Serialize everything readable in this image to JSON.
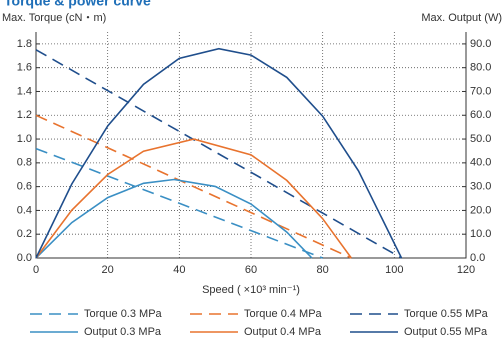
{
  "chart_data": {
    "type": "line",
    "title": "Torque & power curve",
    "y_label": "Max. Torque (cN・m)",
    "y2_label": "Max. Output  (W)",
    "x_label": "Speed ( ×10³ min⁻¹)",
    "xlim": [
      0,
      120
    ],
    "xticks": [
      0,
      20,
      40,
      60,
      80,
      100,
      120
    ],
    "ylim": [
      0,
      1.9
    ],
    "yticks": [
      {
        "value": 0,
        "label": "0.0"
      },
      0.2,
      0.4,
      0.6,
      0.8,
      {
        "value": 1,
        "label": "1.0"
      },
      1.2,
      1.4,
      1.6,
      1.8
    ],
    "y2lim": [
      0,
      95
    ],
    "y2ticks": [
      {
        "value": 0,
        "label": "0.0"
      },
      {
        "value": 10,
        "label": "10.0"
      },
      {
        "value": 20,
        "label": "20.0"
      },
      {
        "value": 30,
        "label": "30.0"
      },
      {
        "value": 40,
        "label": "40.0"
      },
      {
        "value": 50,
        "label": "50.0"
      },
      {
        "value": 60,
        "label": "60.0"
      },
      {
        "value": 70,
        "label": "70.0"
      },
      {
        "value": 80,
        "label": "80.0"
      },
      {
        "value": 90,
        "label": "90.0"
      }
    ],
    "grid": true,
    "series": [
      {
        "name": "Torque 0.3 MPa",
        "color": "#3a8fc4",
        "style": "dashed",
        "x": [
          0,
          80
        ],
        "values": [
          0.92,
          0
        ]
      },
      {
        "name": "Torque 0.4 MPa",
        "color": "#e8732e",
        "style": "dashed",
        "x": [
          0,
          88
        ],
        "values": [
          1.2,
          0
        ]
      },
      {
        "name": "Torque 0.55 MPa",
        "color": "#1f4e8c",
        "style": "dashed",
        "x": [
          0,
          102
        ],
        "values": [
          1.75,
          0
        ]
      },
      {
        "name": "Output 0.3 MPa",
        "color": "#3a8fc4",
        "style": "solid",
        "axis": "y2",
        "x": [
          0,
          10,
          20,
          30,
          38.5,
          50,
          60,
          70,
          77
        ],
        "values": [
          0,
          14.9,
          25.4,
          31.4,
          33,
          30.1,
          22.7,
          10.9,
          0
        ]
      },
      {
        "name": "Output 0.4 MPa",
        "color": "#e8732e",
        "style": "solid",
        "axis": "y2",
        "x": [
          0,
          10,
          20,
          30,
          44,
          60,
          70,
          80,
          88
        ],
        "values": [
          0,
          20.1,
          35.1,
          44.9,
          50,
          43.4,
          32.6,
          16.5,
          0
        ]
      },
      {
        "name": "Output 0.55 MPa",
        "color": "#1f4e8c",
        "style": "solid",
        "axis": "y2",
        "x": [
          0,
          10,
          20,
          30,
          40,
          51,
          60,
          70,
          80,
          90,
          102
        ],
        "values": [
          0,
          31.1,
          55.5,
          73.0,
          83.9,
          88,
          85.3,
          75.9,
          59.6,
          36.6,
          0
        ]
      }
    ]
  }
}
